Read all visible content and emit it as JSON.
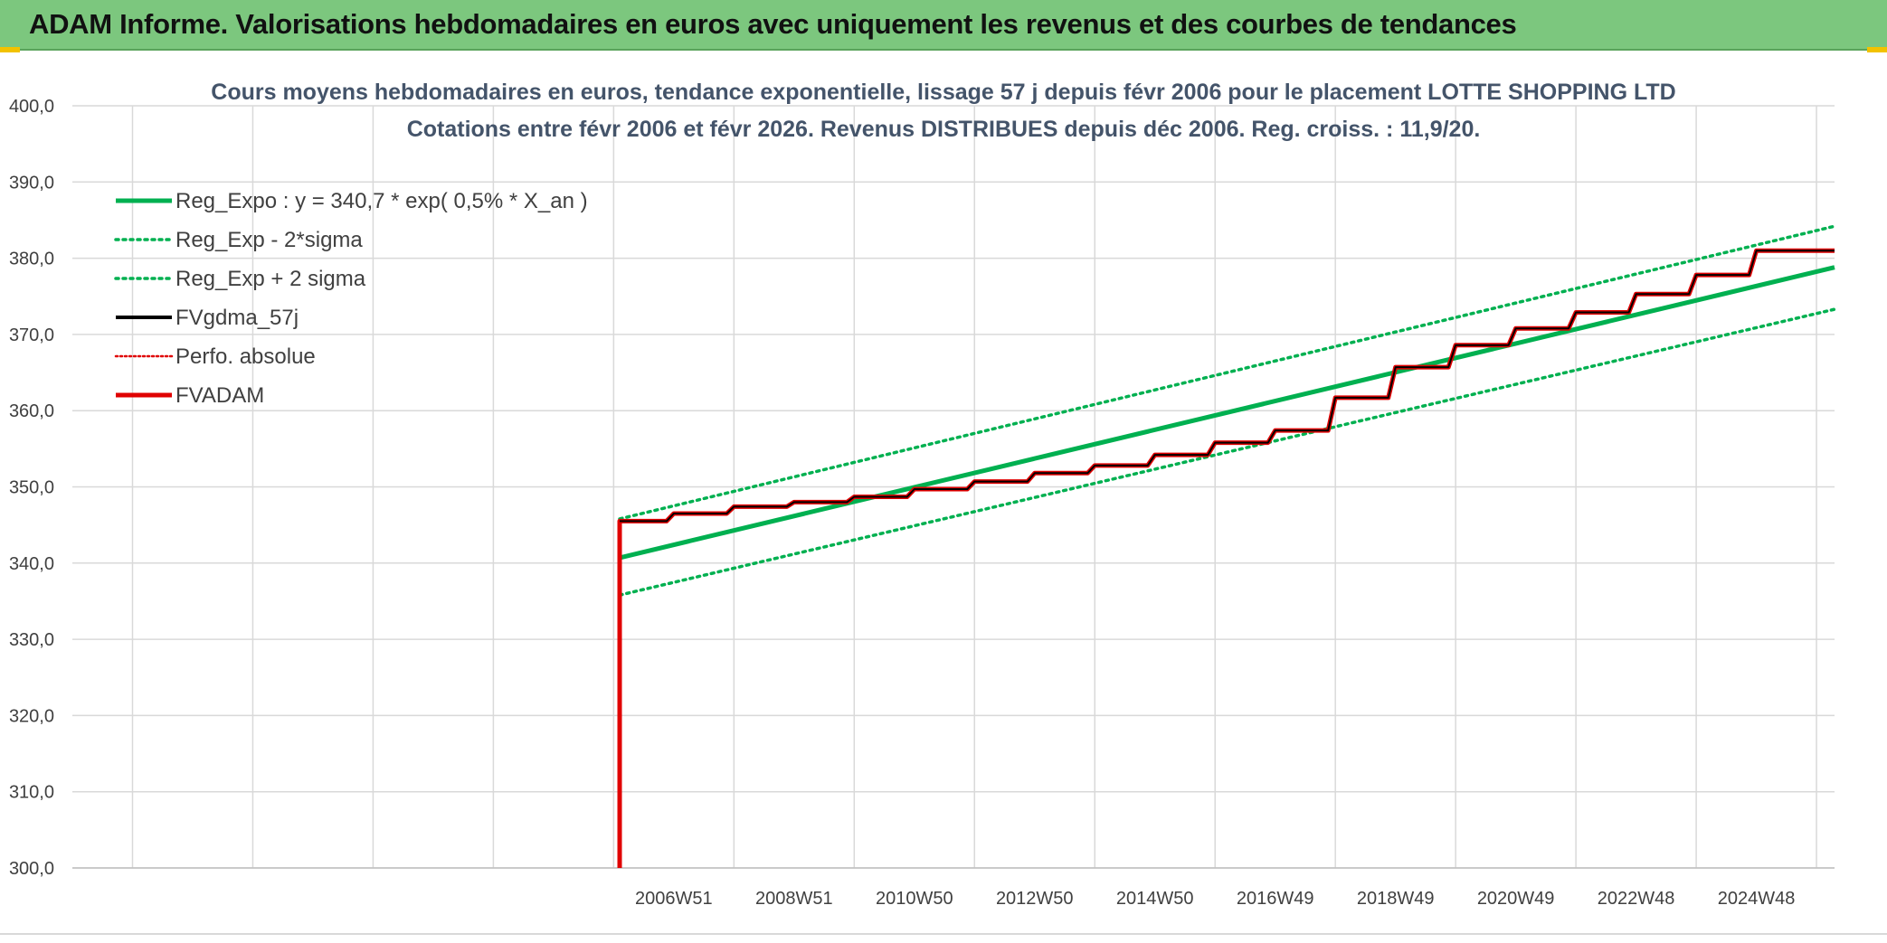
{
  "banner": {
    "title": "ADAM Informe. Valorisations hebdomadaires en euros avec uniquement les revenus et des courbes de tendances"
  },
  "colors": {
    "banner_bg": "#7cc77e",
    "reg_expo": "#00b050",
    "fvgdma": "#000000",
    "perfo": "#e00000",
    "fvadam": "#e00000",
    "grid": "#d9d9d9"
  },
  "chart_data": {
    "type": "line",
    "title": "Cours moyens hebdomadaires en euros, tendance exponentielle, lissage 57 j depuis févr 2006 pour le placement LOTTE SHOPPING LTD",
    "subtitle": "Cotations entre févr 2006 et févr 2026. Revenus DISTRIBUES depuis déc 2006. Reg. croiss. : 11,9/20.",
    "xlabel": "",
    "ylabel": "",
    "ylim": [
      300,
      400
    ],
    "yticks": [
      "300,0",
      "310,0",
      "320,0",
      "330,0",
      "340,0",
      "350,0",
      "360,0",
      "370,0",
      "380,0",
      "390,0",
      "400,0"
    ],
    "x_tick_labels": [
      "2006W51",
      "2008W51",
      "2010W50",
      "2012W50",
      "2014W50",
      "2016W49",
      "2018W49",
      "2020W49",
      "2022W48",
      "2024W48"
    ],
    "x_range_years": [
      1997.0,
      2026.3
    ],
    "x_tick_years": [
      2007.0,
      2009.0,
      2011.0,
      2013.0,
      2015.0,
      2017.0,
      2019.0,
      2021.0,
      2023.0,
      2025.0
    ],
    "grid": true,
    "legend_position": "top-left",
    "series": [
      {
        "name": "Reg_Expo : y = 340,7 * exp( 0,5% *  X_an )",
        "style": "solid-thick",
        "color": "#00b050",
        "x": [
          2006.1,
          2026.3
        ],
        "y": [
          340.7,
          378.8
        ]
      },
      {
        "name": "Reg_Exp - 2*sigma",
        "style": "dotted",
        "color": "#00b050",
        "x": [
          2006.1,
          2026.3
        ],
        "y": [
          335.8,
          373.3
        ]
      },
      {
        "name": "Reg_Exp + 2 sigma",
        "style": "dotted",
        "color": "#00b050",
        "x": [
          2006.1,
          2026.3
        ],
        "y": [
          345.8,
          384.2
        ]
      },
      {
        "name": "FVgdma_57j",
        "style": "solid",
        "color": "#000000",
        "steps": [
          [
            2006.1,
            345.5
          ],
          [
            2007.0,
            346.5
          ],
          [
            2008.0,
            347.4
          ],
          [
            2009.0,
            348.0
          ],
          [
            2010.0,
            348.7
          ],
          [
            2011.0,
            349.7
          ],
          [
            2012.0,
            350.7
          ],
          [
            2013.0,
            351.8
          ],
          [
            2014.0,
            352.8
          ],
          [
            2015.0,
            354.2
          ],
          [
            2016.0,
            355.8
          ],
          [
            2017.0,
            357.4
          ],
          [
            2018.0,
            361.7
          ],
          [
            2019.0,
            365.7
          ],
          [
            2020.0,
            368.6
          ],
          [
            2021.0,
            370.8
          ],
          [
            2022.0,
            372.9
          ],
          [
            2023.0,
            375.3
          ],
          [
            2024.0,
            377.8
          ],
          [
            2025.0,
            381.0
          ],
          [
            2026.3,
            381.0
          ]
        ]
      },
      {
        "name": "Perfo. absolue",
        "style": "dotted",
        "color": "#e00000",
        "x": [],
        "y": []
      },
      {
        "name": "FVADAM",
        "style": "solid-thick",
        "color": "#e00000",
        "start": [
          2006.1,
          300.0
        ],
        "steps": [
          [
            2006.1,
            345.5
          ],
          [
            2007.0,
            346.5
          ],
          [
            2008.0,
            347.4
          ],
          [
            2009.0,
            348.0
          ],
          [
            2010.0,
            348.7
          ],
          [
            2011.0,
            349.7
          ],
          [
            2012.0,
            350.7
          ],
          [
            2013.0,
            351.8
          ],
          [
            2014.0,
            352.8
          ],
          [
            2015.0,
            354.2
          ],
          [
            2016.0,
            355.8
          ],
          [
            2017.0,
            357.4
          ],
          [
            2018.0,
            361.7
          ],
          [
            2019.0,
            365.7
          ],
          [
            2020.0,
            368.6
          ],
          [
            2021.0,
            370.8
          ],
          [
            2022.0,
            372.9
          ],
          [
            2023.0,
            375.3
          ],
          [
            2024.0,
            377.8
          ],
          [
            2025.0,
            381.0
          ],
          [
            2026.3,
            381.0
          ]
        ]
      }
    ]
  }
}
